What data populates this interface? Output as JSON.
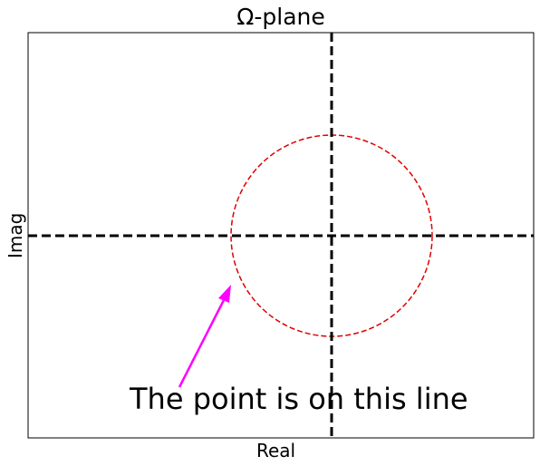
{
  "title": "Ω-plane",
  "xlabel": "Real",
  "ylabel": "Imag",
  "annotation": {
    "text": "The point is on this line"
  },
  "colors": {
    "circle": "#e00000",
    "axes": "#000000",
    "arrow": "#ff00ff",
    "frame": "#000000"
  }
}
